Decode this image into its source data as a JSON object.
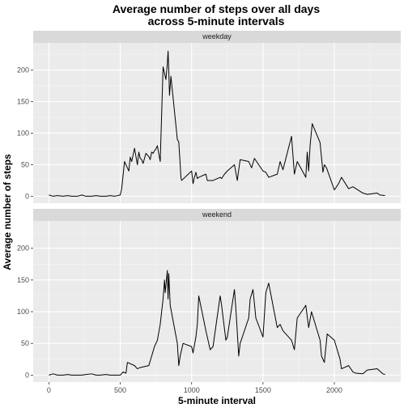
{
  "chart_data": {
    "type": "line",
    "title_lines": [
      "Average number of steps over all days",
      "across 5-minute intervals"
    ],
    "xlabel": "5-minute interval",
    "ylabel": "Average number of steps",
    "xlim": [
      -110,
      2465
    ],
    "ylim": [
      -11,
      243
    ],
    "x_ticks": [
      0,
      500,
      1000,
      1500,
      2000
    ],
    "y_ticks": [
      0,
      50,
      100,
      150,
      200
    ],
    "grid": true,
    "panels": [
      {
        "label": "weekday",
        "x": [
          0,
          30,
          60,
          100,
          130,
          160,
          200,
          230,
          260,
          300,
          330,
          360,
          400,
          430,
          460,
          500,
          510,
          530,
          540,
          550,
          560,
          570,
          580,
          600,
          620,
          630,
          640,
          650,
          660,
          680,
          700,
          710,
          720,
          730,
          740,
          750,
          760,
          780,
          800,
          820,
          830,
          835,
          840,
          845,
          850,
          855,
          900,
          910,
          920,
          925,
          930,
          1000,
          1010,
          1020,
          1030,
          1040,
          1050,
          1100,
          1110,
          1130,
          1150,
          1200,
          1210,
          1230,
          1250,
          1300,
          1320,
          1340,
          1400,
          1420,
          1440,
          1500,
          1520,
          1540,
          1600,
          1620,
          1640,
          1700,
          1720,
          1740,
          1800,
          1810,
          1820,
          1830,
          1845,
          1900,
          1920,
          1930,
          1945,
          2000,
          2030,
          2050,
          2100,
          2130,
          2200,
          2230,
          2300,
          2320,
          2355
        ],
        "y": [
          2,
          0,
          1,
          0,
          1,
          0,
          0,
          2,
          0,
          0,
          1,
          0,
          0,
          1,
          0,
          2,
          12,
          55,
          50,
          45,
          40,
          62,
          55,
          76,
          50,
          70,
          60,
          58,
          52,
          68,
          63,
          58,
          70,
          68,
          72,
          75,
          80,
          55,
          205,
          185,
          210,
          230,
          200,
          160,
          175,
          190,
          90,
          86,
          50,
          30,
          25,
          40,
          20,
          30,
          38,
          28,
          30,
          35,
          25,
          25,
          25,
          30,
          28,
          35,
          40,
          50,
          25,
          58,
          55,
          45,
          60,
          40,
          38,
          30,
          35,
          55,
          42,
          95,
          35,
          55,
          30,
          70,
          40,
          80,
          115,
          85,
          38,
          50,
          45,
          10,
          20,
          30,
          12,
          15,
          5,
          3,
          5,
          2,
          1
        ]
      },
      {
        "label": "weekend",
        "x": [
          0,
          30,
          60,
          100,
          130,
          160,
          200,
          230,
          260,
          300,
          330,
          360,
          400,
          430,
          460,
          500,
          520,
          540,
          550,
          600,
          620,
          640,
          700,
          720,
          740,
          760,
          780,
          800,
          810,
          815,
          830,
          835,
          840,
          850,
          900,
          910,
          920,
          930,
          940,
          1000,
          1010,
          1030,
          1040,
          1050,
          1100,
          1130,
          1150,
          1200,
          1210,
          1240,
          1250,
          1300,
          1310,
          1330,
          1340,
          1400,
          1410,
          1430,
          1450,
          1500,
          1520,
          1540,
          1600,
          1620,
          1640,
          1700,
          1720,
          1740,
          1800,
          1820,
          1840,
          1900,
          1910,
          1930,
          1950,
          2000,
          2020,
          2040,
          2050,
          2100,
          2130,
          2150,
          2200,
          2230,
          2300,
          2340,
          2355
        ],
        "y": [
          0,
          2,
          0,
          0,
          1,
          0,
          0,
          0,
          1,
          2,
          0,
          0,
          1,
          0,
          0,
          0,
          5,
          3,
          20,
          15,
          10,
          12,
          15,
          30,
          45,
          55,
          80,
          120,
          150,
          130,
          165,
          120,
          160,
          110,
          50,
          15,
          30,
          40,
          50,
          45,
          35,
          60,
          80,
          125,
          70,
          40,
          45,
          125,
          110,
          55,
          60,
          135,
          105,
          30,
          50,
          90,
          120,
          135,
          90,
          60,
          130,
          145,
          75,
          80,
          70,
          55,
          40,
          90,
          110,
          75,
          100,
          55,
          30,
          20,
          65,
          55,
          40,
          25,
          10,
          15,
          5,
          3,
          2,
          8,
          10,
          2,
          1
        ]
      }
    ]
  }
}
